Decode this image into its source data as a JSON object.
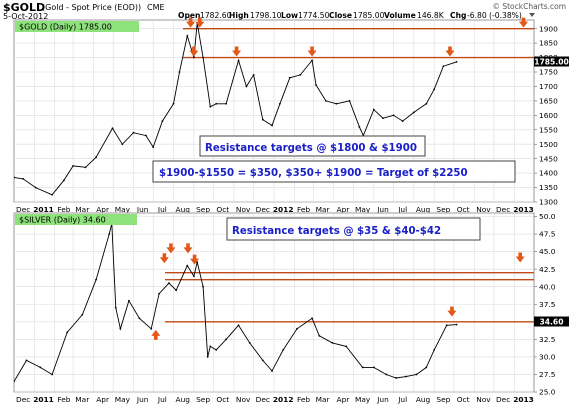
{
  "header": {
    "symbol": "$GOLD",
    "description": "(Gold - Spot Price (EOD))",
    "exchange": "CME",
    "date": "5-Oct-2012",
    "watermark": "© StockCharts.com",
    "quote": {
      "open_label": "Open",
      "open": "1782.60",
      "high_label": "High",
      "high": "1798.10",
      "low_label": "Low",
      "low": "1774.50",
      "close_label": "Close",
      "close": "1785.00",
      "volume_label": "Volume",
      "volume": "146.8K",
      "chg_label": "Chg",
      "chg": "-6.80 (-0.38%)"
    }
  },
  "colors": {
    "price": "#000000",
    "grid": "#dcdcdc",
    "resistance": "#c04a1a",
    "arrow": "#e2581a",
    "legend_bg": "#8ee27c",
    "annotation_text": "#1a20c8",
    "last_price_bg": "#000000"
  },
  "icons": {
    "arrow": "down-arrow-icon",
    "arrow_up": "up-arrow-icon",
    "menu": "chevron-down-icon"
  },
  "chart_data": [
    {
      "type": "line",
      "series_name": "$GOLD (Daily) 1785.00",
      "last_value_label": "1785.00",
      "x_ticks": [
        "Dec",
        "2011",
        "Feb",
        "Mar",
        "Apr",
        "May",
        "Jun",
        "Jul",
        "Aug",
        "Sep",
        "Oct",
        "Nov",
        "Dec",
        "2012",
        "Feb",
        "Mar",
        "Apr",
        "May",
        "Jun",
        "Jul",
        "Aug",
        "Sep",
        "Oct",
        "Nov",
        "Dec",
        "2013"
      ],
      "bold_x_ticks": [
        "2011",
        "2012",
        "2013"
      ],
      "y_ticks": [
        1300,
        1350,
        1400,
        1450,
        1500,
        1550,
        1600,
        1650,
        1700,
        1750,
        1800,
        1850,
        1900
      ],
      "ylim": [
        1300,
        1930
      ],
      "x": [
        "2010-12-01",
        "2010-12-15",
        "2011-01-03",
        "2011-01-28",
        "2011-02-15",
        "2011-03-01",
        "2011-03-20",
        "2011-04-05",
        "2011-04-30",
        "2011-05-15",
        "2011-06-01",
        "2011-06-20",
        "2011-07-01",
        "2011-07-15",
        "2011-08-01",
        "2011-08-10",
        "2011-08-22",
        "2011-09-01",
        "2011-09-06",
        "2011-09-15",
        "2011-09-26",
        "2011-10-05",
        "2011-10-20",
        "2011-11-08",
        "2011-11-20",
        "2011-12-01",
        "2011-12-15",
        "2011-12-29",
        "2012-01-10",
        "2012-01-25",
        "2012-02-10",
        "2012-02-28",
        "2012-03-05",
        "2012-03-20",
        "2012-04-05",
        "2012-04-25",
        "2012-05-10",
        "2012-05-16",
        "2012-06-01",
        "2012-06-15",
        "2012-07-01",
        "2012-07-15",
        "2012-08-01",
        "2012-08-20",
        "2012-09-01",
        "2012-09-15",
        "2012-10-05"
      ],
      "y": [
        1385,
        1380,
        1350,
        1325,
        1375,
        1425,
        1420,
        1455,
        1555,
        1500,
        1540,
        1530,
        1490,
        1580,
        1640,
        1750,
        1875,
        1800,
        1920,
        1800,
        1630,
        1640,
        1640,
        1790,
        1700,
        1740,
        1585,
        1565,
        1640,
        1730,
        1740,
        1790,
        1705,
        1650,
        1640,
        1650,
        1560,
        1530,
        1620,
        1590,
        1600,
        1580,
        1610,
        1640,
        1690,
        1770,
        1785
      ],
      "resistance_lines": [
        1800,
        1900
      ],
      "annotations": [
        "Resistance targets @ $1800 & $1900",
        "$1900-$1550 = $350, $350+ $1900 = Target of $2250"
      ]
    },
    {
      "type": "line",
      "series_name": "$SILVER (Daily) 34.60",
      "last_value_label": "34.60",
      "x_ticks": [
        "Dec",
        "2011",
        "Feb",
        "Mar",
        "Apr",
        "May",
        "Jun",
        "Jul",
        "Aug",
        "Sep",
        "Oct",
        "Nov",
        "Dec",
        "2012",
        "Feb",
        "Mar",
        "Apr",
        "May",
        "Jun",
        "Jul",
        "Aug",
        "Sep",
        "Oct",
        "Nov",
        "Dec",
        "2013"
      ],
      "bold_x_ticks": [
        "2011",
        "2012",
        "2013"
      ],
      "y_ticks": [
        25.0,
        27.5,
        30.0,
        32.5,
        35.0,
        37.5,
        40.0,
        42.5,
        45.0,
        47.5,
        50.0
      ],
      "ylim": [
        25,
        50.5
      ],
      "x": [
        "2010-12-01",
        "2010-12-20",
        "2011-01-10",
        "2011-01-28",
        "2011-02-20",
        "2011-03-15",
        "2011-04-05",
        "2011-04-25",
        "2011-04-29",
        "2011-05-05",
        "2011-05-12",
        "2011-05-25",
        "2011-06-10",
        "2011-06-28",
        "2011-07-10",
        "2011-07-25",
        "2011-08-05",
        "2011-08-22",
        "2011-09-01",
        "2011-09-06",
        "2011-09-15",
        "2011-09-22",
        "2011-09-26",
        "2011-10-05",
        "2011-10-20",
        "2011-11-08",
        "2011-11-25",
        "2011-12-15",
        "2011-12-29",
        "2012-01-15",
        "2012-02-05",
        "2012-02-28",
        "2012-03-10",
        "2012-03-30",
        "2012-04-20",
        "2012-05-15",
        "2012-06-01",
        "2012-06-20",
        "2012-07-05",
        "2012-07-20",
        "2012-08-05",
        "2012-08-20",
        "2012-09-01",
        "2012-09-20",
        "2012-10-05"
      ],
      "y": [
        26.5,
        29.5,
        28.5,
        27.5,
        33.5,
        36.0,
        41.0,
        47.5,
        49.0,
        37.0,
        34.0,
        38.0,
        35.5,
        34.0,
        39.0,
        40.5,
        39.5,
        43.0,
        41.5,
        43.5,
        40.0,
        30.0,
        31.5,
        31.0,
        32.5,
        34.5,
        32.0,
        29.5,
        28.0,
        31.0,
        34.0,
        35.5,
        33.0,
        32.0,
        31.5,
        28.5,
        28.5,
        27.5,
        27.0,
        27.2,
        27.5,
        28.5,
        31.0,
        34.5,
        34.6
      ],
      "resistance_lines": [
        35,
        41,
        42
      ],
      "annotations": [
        "Resistance targets @ $35 & $40-$42"
      ]
    }
  ]
}
